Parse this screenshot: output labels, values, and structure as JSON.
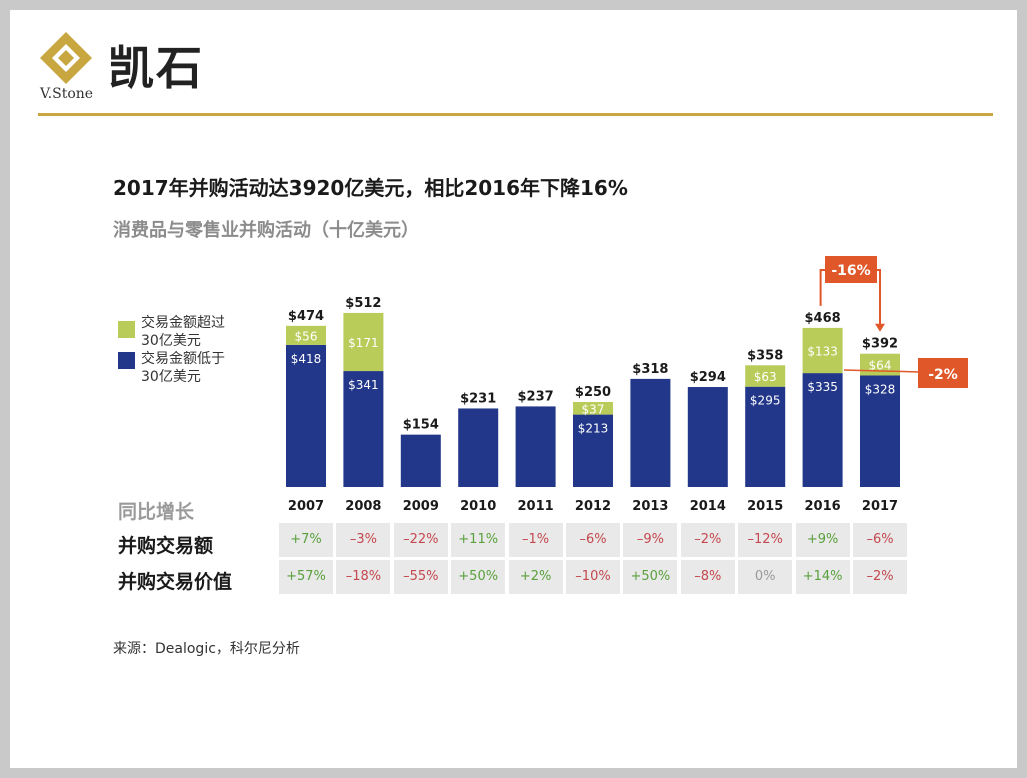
{
  "brand": {
    "logo_text": "凯石",
    "logo_sub": "V.Stone",
    "accent_color": "#c8a640"
  },
  "chart_data": {
    "type": "bar",
    "stacked": true,
    "title": "2017年并购活动达3920亿美元，相比2016年下降16%",
    "subtitle": "消费品与零售业并购活动（十亿美元）",
    "categories": [
      "2007",
      "2008",
      "2009",
      "2010",
      "2011",
      "2012",
      "2013",
      "2014",
      "2015",
      "2016",
      "2017"
    ],
    "totals": [
      "$474",
      "$512",
      "$154",
      "$231",
      "$237",
      "$250",
      "$318",
      "$294",
      "$358",
      "$468",
      "$392"
    ],
    "total_values": [
      474,
      512,
      154,
      231,
      237,
      250,
      318,
      294,
      358,
      468,
      392
    ],
    "series": [
      {
        "name": "交易金额低于30亿美元",
        "color": "#22378a",
        "values": [
          418,
          341,
          154,
          231,
          237,
          213,
          318,
          294,
          295,
          335,
          328
        ],
        "labels": [
          "$418",
          "$341",
          "",
          "",
          "",
          "$213",
          "",
          "",
          "$295",
          "$335",
          "$328"
        ]
      },
      {
        "name": "交易金额超过30亿美元",
        "color": "#b9cc5a",
        "values": [
          56,
          171,
          0,
          0,
          0,
          37,
          0,
          0,
          63,
          133,
          64
        ],
        "labels": [
          "$56",
          "$171",
          "",
          "",
          "",
          "$37",
          "",
          "",
          "$63",
          "$133",
          "$64"
        ]
      }
    ],
    "ylim": [
      0,
      520
    ],
    "legend": {
      "position": "top-left",
      "items": [
        {
          "color": "#b9cc5a",
          "lines": [
            "交易金额超过",
            "30亿美元"
          ]
        },
        {
          "color": "#22378a",
          "lines": [
            "交易金额低于",
            "30亿美元"
          ]
        }
      ]
    },
    "annotations": [
      {
        "text": "-16%",
        "color": "#e0582a",
        "from": "2016",
        "to": "2017"
      },
      {
        "text": "-2%",
        "color": "#e0582a",
        "target": "2017"
      }
    ]
  },
  "growth_table": {
    "header": "同比增长",
    "rows": [
      {
        "label": "并购交易额",
        "values": [
          "+7%",
          "-3%",
          "-22%",
          "+11%",
          "-1%",
          "-6%",
          "-9%",
          "-2%",
          "-12%",
          "+9%",
          "-6%"
        ]
      },
      {
        "label": "并购交易价值",
        "values": [
          "+57%",
          "-18%",
          "-55%",
          "+50%",
          "+2%",
          "-10%",
          "+50%",
          "-8%",
          "0%",
          "+14%",
          "-2%"
        ]
      }
    ]
  },
  "source": "来源：Dealogic，科尔尼分析"
}
